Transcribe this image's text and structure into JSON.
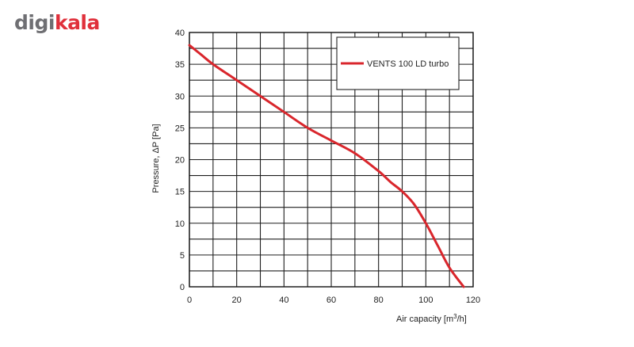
{
  "brand": {
    "part1": "digi",
    "part2": "kala",
    "color_gray": "#6f6f73",
    "color_red": "#e0303b"
  },
  "chart_data": {
    "type": "line",
    "xlabel": "Air capacity [m³/h]",
    "ylabel": "Pressure, ΔP [Pa]",
    "xlim": [
      0,
      120
    ],
    "ylim": [
      0,
      40
    ],
    "xticks": [
      "0",
      "20",
      "40",
      "60",
      "80",
      "100",
      "120"
    ],
    "yticks": [
      "0",
      "5",
      "10",
      "15",
      "20",
      "25",
      "30",
      "35",
      "40"
    ],
    "grid": true,
    "legend_position": "top-right",
    "series": [
      {
        "name": "VENTS 100 LD turbo",
        "color": "#d9262c",
        "x": [
          0,
          5,
          10,
          20,
          30,
          40,
          50,
          60,
          70,
          80,
          85,
          90,
          95,
          100,
          105,
          110,
          116
        ],
        "y": [
          38,
          36.5,
          35,
          32.5,
          30,
          27.5,
          25,
          23,
          21,
          18.2,
          16.5,
          15,
          13,
          10,
          6.5,
          3,
          0
        ]
      }
    ]
  }
}
